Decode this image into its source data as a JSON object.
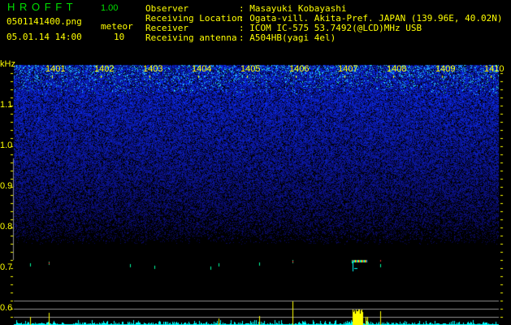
{
  "app": {
    "title": "H R O F F T",
    "version": "1.00"
  },
  "file": {
    "name": "0501141400.png",
    "datetime": "05.01.14 14:00"
  },
  "meteor": {
    "label": "meteor",
    "count": "10"
  },
  "info": [
    {
      "label": "Observer",
      "value": ": Masayuki Kobayashi"
    },
    {
      "label": "Receiving Location",
      "value": ": Ogata-vill. Akita-Pref. JAPAN (139.96E, 40.02N)"
    },
    {
      "label": "Receiver",
      "value": ": ICOM IC-575 53.7492(@LCD)MHz USB"
    },
    {
      "label": "Receiving antenna",
      "value": ": A504HB(yagi 4el)"
    }
  ],
  "axis": {
    "unit": "kHz",
    "time_ticks": [
      "1401",
      "1402",
      "1403",
      "1404",
      "1405",
      "1406",
      "1407",
      "1408",
      "1409",
      "1410"
    ],
    "freq_ticks": [
      "1.1",
      "1.0",
      "0.9",
      "0.8",
      "0.7",
      "0.6"
    ]
  },
  "colors": {
    "text": "#ffff00",
    "title": "#00e000",
    "noise": "#2020ff",
    "histogram": "#00ffff",
    "meteor_bar": "#ffff00",
    "guide": "#909090"
  }
}
